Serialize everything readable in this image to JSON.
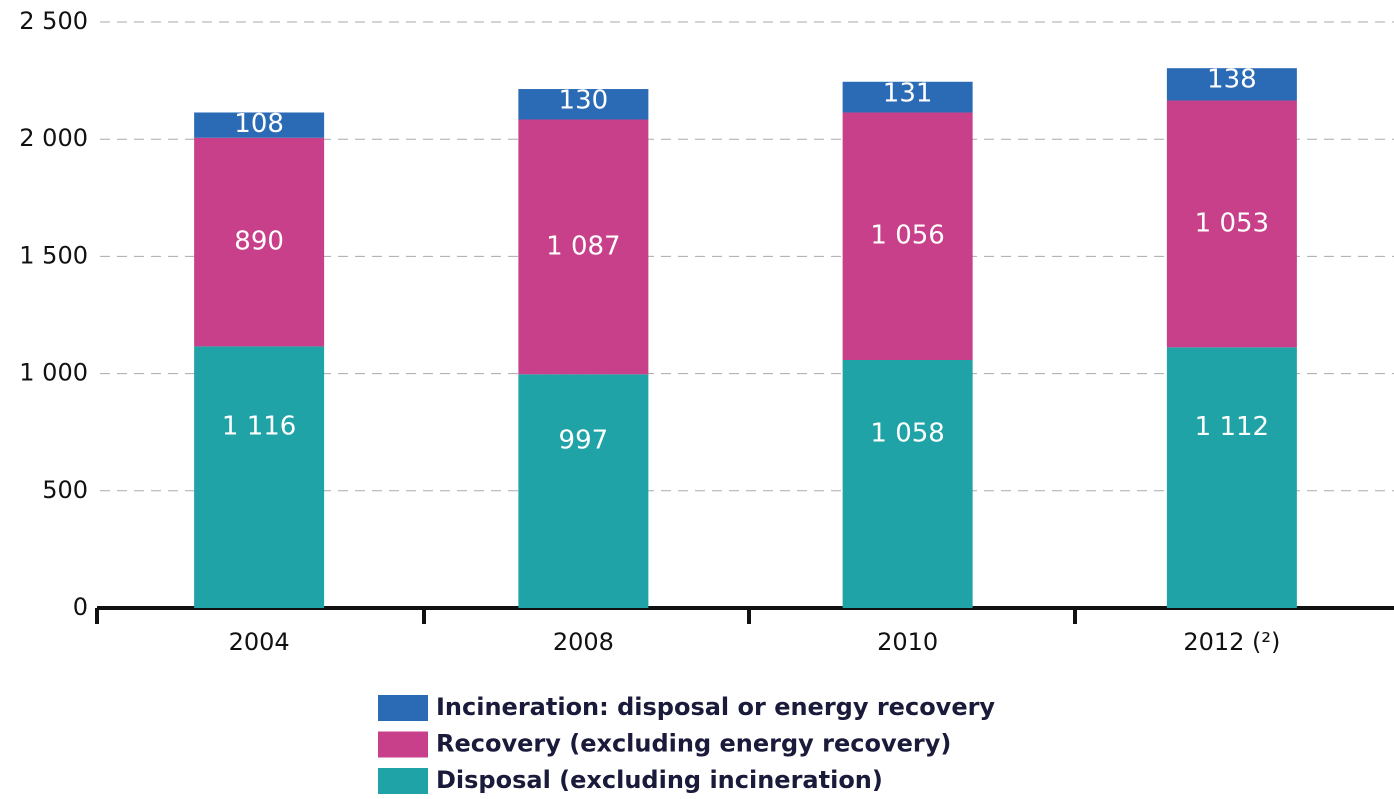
{
  "chart_data": {
    "type": "stacked_bar",
    "categories": [
      "2004",
      "2008",
      "2010",
      "2012 (²)"
    ],
    "series": [
      {
        "name": "Disposal (excluding incineration)",
        "color": "#1fa3a6",
        "values": [
          1116,
          997,
          1058,
          1112
        ],
        "value_labels": [
          "1 116",
          "997",
          "1 058",
          "1 112"
        ]
      },
      {
        "name": "Recovery (excluding energy recovery)",
        "color": "#c8408a",
        "values": [
          890,
          1087,
          1056,
          1053
        ],
        "value_labels": [
          "890",
          "1 087",
          "1 056",
          "1 053"
        ]
      },
      {
        "name": "Incineration: disposal or energy recovery",
        "color": "#2b6bb5",
        "values": [
          108,
          130,
          131,
          138
        ]
      }
    ],
    "ylim": [
      0,
      2500
    ],
    "yticks": [
      0,
      500,
      {
        "value": 1000,
        "label": "1 000"
      },
      {
        "value": 1500,
        "label": "1 500"
      },
      {
        "value": 2000,
        "label": "2 000"
      },
      {
        "value": 2500,
        "label": "2 500"
      }
    ],
    "grid": true,
    "legend": "bottom"
  }
}
